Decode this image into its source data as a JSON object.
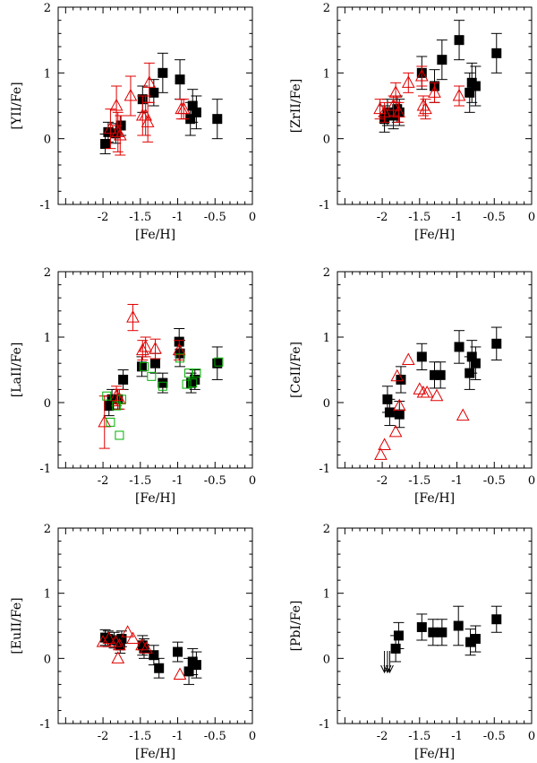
{
  "chart_data": [
    {
      "type": "scatter",
      "panel": "top-left",
      "xlabel": "[Fe/H]",
      "ylabel": "[YII/Fe]",
      "xlim": [
        -2.6,
        0
      ],
      "ylim": [
        -1,
        2
      ],
      "xticks": [
        "-2",
        "-1.5",
        "-1",
        "-0.5",
        "0"
      ],
      "yticks": [
        "-1",
        "0",
        "1",
        "2"
      ],
      "series": [
        {
          "name": "black-squares",
          "marker": "square",
          "color": "#000000",
          "points": [
            {
              "x": -1.97,
              "y": -0.08,
              "err": 0.15
            },
            {
              "x": -1.93,
              "y": 0.1,
              "err": 0.15
            },
            {
              "x": -1.83,
              "y": 0.08,
              "err": 0.15
            },
            {
              "x": -1.76,
              "y": 0.2,
              "err": 0.15
            },
            {
              "x": -1.47,
              "y": 0.6,
              "err": 0.2
            },
            {
              "x": -1.32,
              "y": 0.7,
              "err": 0.2
            },
            {
              "x": -1.2,
              "y": 1.0,
              "err": 0.3
            },
            {
              "x": -0.97,
              "y": 0.9,
              "err": 0.3
            },
            {
              "x": -0.83,
              "y": 0.3,
              "err": 0.25
            },
            {
              "x": -0.8,
              "y": 0.5,
              "err": 0.25
            },
            {
              "x": -0.75,
              "y": 0.4,
              "err": 0.25
            },
            {
              "x": -0.47,
              "y": 0.3,
              "err": 0.3
            }
          ]
        },
        {
          "name": "red-triangles",
          "marker": "triangle",
          "color": "#e00000",
          "points": [
            {
              "x": -1.9,
              "y": 0.15,
              "err": 0.3
            },
            {
              "x": -1.82,
              "y": 0.5,
              "err": 0.3
            },
            {
              "x": -1.8,
              "y": 0.1,
              "err": 0.3
            },
            {
              "x": -1.77,
              "y": 0.05,
              "err": 0.3
            },
            {
              "x": -1.63,
              "y": 0.65,
              "err": 0.3
            },
            {
              "x": -1.47,
              "y": 0.35,
              "err": 0.3
            },
            {
              "x": -1.43,
              "y": 0.35,
              "err": 0.3
            },
            {
              "x": -1.4,
              "y": 0.25,
              "err": 0.3
            },
            {
              "x": -1.38,
              "y": 0.85,
              "err": 0.3
            },
            {
              "x": -0.95,
              "y": 0.45,
              "err": 0.15
            },
            {
              "x": -0.92,
              "y": 0.45,
              "err": 0.15
            }
          ]
        }
      ]
    },
    {
      "type": "scatter",
      "panel": "top-right",
      "xlabel": "[Fe/H]",
      "ylabel": "[ZrII/Fe]",
      "xlim": [
        -2.6,
        0
      ],
      "ylim": [
        -1,
        2
      ],
      "xticks": [
        "-2",
        "-1.5",
        "-1",
        "-0.5",
        "0"
      ],
      "yticks": [
        "-1",
        "0",
        "1",
        "2"
      ],
      "series": [
        {
          "name": "black-squares",
          "marker": "square",
          "color": "#000000",
          "points": [
            {
              "x": -1.97,
              "y": 0.3,
              "err": 0.2
            },
            {
              "x": -1.93,
              "y": 0.4,
              "err": 0.2
            },
            {
              "x": -1.85,
              "y": 0.35,
              "err": 0.2
            },
            {
              "x": -1.8,
              "y": 0.45,
              "err": 0.2
            },
            {
              "x": -1.77,
              "y": 0.4,
              "err": 0.2
            },
            {
              "x": -1.47,
              "y": 1.0,
              "err": 0.25
            },
            {
              "x": -1.3,
              "y": 0.8,
              "err": 0.25
            },
            {
              "x": -1.2,
              "y": 1.2,
              "err": 0.3
            },
            {
              "x": -0.97,
              "y": 1.5,
              "err": 0.3
            },
            {
              "x": -0.83,
              "y": 0.7,
              "err": 0.3
            },
            {
              "x": -0.8,
              "y": 0.85,
              "err": 0.3
            },
            {
              "x": -0.75,
              "y": 0.8,
              "err": 0.3
            },
            {
              "x": -0.47,
              "y": 1.3,
              "err": 0.3
            }
          ]
        },
        {
          "name": "red-triangles",
          "marker": "triangle",
          "color": "#e00000",
          "points": [
            {
              "x": -2.03,
              "y": 0.45,
              "err": 0.15
            },
            {
              "x": -1.97,
              "y": 0.4,
              "err": 0.15
            },
            {
              "x": -1.85,
              "y": 0.5,
              "err": 0.15
            },
            {
              "x": -1.82,
              "y": 0.7,
              "err": 0.15
            },
            {
              "x": -1.78,
              "y": 0.4,
              "err": 0.15
            },
            {
              "x": -1.65,
              "y": 0.85,
              "err": 0.15
            },
            {
              "x": -1.47,
              "y": 0.95,
              "err": 0.15
            },
            {
              "x": -1.45,
              "y": 0.5,
              "err": 0.15
            },
            {
              "x": -1.42,
              "y": 0.45,
              "err": 0.15
            },
            {
              "x": -1.3,
              "y": 0.7,
              "err": 0.15
            },
            {
              "x": -0.97,
              "y": 0.65,
              "err": 0.15
            }
          ]
        }
      ]
    },
    {
      "type": "scatter",
      "panel": "middle-left",
      "xlabel": "[Fe/H]",
      "ylabel": "[LaII/Fe]",
      "xlim": [
        -2.6,
        0
      ],
      "ylim": [
        -1,
        2
      ],
      "xticks": [
        "-2",
        "-1.5",
        "-1",
        "-0.5",
        "0"
      ],
      "yticks": [
        "-1",
        "0",
        "1",
        "2"
      ],
      "series": [
        {
          "name": "black-squares",
          "marker": "square",
          "color": "#000000",
          "points": [
            {
              "x": -1.92,
              "y": -0.05,
              "err": 0.15
            },
            {
              "x": -1.88,
              "y": 0.05,
              "err": 0.15
            },
            {
              "x": -1.8,
              "y": 0.05,
              "err": 0.15
            },
            {
              "x": -1.73,
              "y": 0.35,
              "err": 0.15
            },
            {
              "x": -1.48,
              "y": 0.55,
              "err": 0.15
            },
            {
              "x": -1.3,
              "y": 0.6,
              "err": 0.15
            },
            {
              "x": -1.2,
              "y": 0.3,
              "err": 0.15
            },
            {
              "x": -0.98,
              "y": 0.93,
              "err": 0.2
            },
            {
              "x": -0.97,
              "y": 0.75,
              "err": 0.2
            },
            {
              "x": -0.82,
              "y": 0.3,
              "err": 0.15
            },
            {
              "x": -0.77,
              "y": 0.35,
              "err": 0.15
            },
            {
              "x": -0.47,
              "y": 0.6,
              "err": 0.25
            }
          ]
        },
        {
          "name": "red-triangles",
          "marker": "triangle",
          "color": "#e00000",
          "points": [
            {
              "x": -1.98,
              "y": -0.3,
              "err": 0.4
            },
            {
              "x": -1.82,
              "y": 0.1,
              "err": 0.15
            },
            {
              "x": -1.78,
              "y": 0.05,
              "err": 0.15
            },
            {
              "x": -1.6,
              "y": 1.3,
              "err": 0.2
            },
            {
              "x": -1.47,
              "y": 0.8,
              "err": 0.15
            },
            {
              "x": -1.43,
              "y": 0.85,
              "err": 0.15
            },
            {
              "x": -1.3,
              "y": 0.82,
              "err": 0.15
            },
            {
              "x": -0.98,
              "y": 0.8,
              "err": 0.15
            }
          ]
        },
        {
          "name": "green-squares",
          "marker": "open-square",
          "color": "#00b000",
          "points": [
            {
              "x": -1.95,
              "y": 0.1
            },
            {
              "x": -1.9,
              "y": -0.3
            },
            {
              "x": -1.82,
              "y": -0.05
            },
            {
              "x": -1.78,
              "y": -0.5
            },
            {
              "x": -1.75,
              "y": 0.05
            },
            {
              "x": -1.45,
              "y": 0.55
            },
            {
              "x": -1.35,
              "y": 0.4
            },
            {
              "x": -1.2,
              "y": 0.25
            },
            {
              "x": -0.97,
              "y": 0.68
            },
            {
              "x": -0.88,
              "y": 0.28
            },
            {
              "x": -0.85,
              "y": 0.45
            },
            {
              "x": -0.8,
              "y": 0.3
            },
            {
              "x": -0.75,
              "y": 0.45
            },
            {
              "x": -0.45,
              "y": 0.62
            }
          ]
        }
      ]
    },
    {
      "type": "scatter",
      "panel": "middle-right",
      "xlabel": "[Fe/H]",
      "ylabel": "[CeII/Fe]",
      "xlim": [
        -2.6,
        0
      ],
      "ylim": [
        -1,
        2
      ],
      "xticks": [
        "-2",
        "-1.5",
        "-1",
        "-0.5",
        "0"
      ],
      "yticks": [
        "-1",
        "0",
        "1",
        "2"
      ],
      "series": [
        {
          "name": "black-squares",
          "marker": "square",
          "color": "#000000",
          "points": [
            {
              "x": -1.93,
              "y": 0.05,
              "err": 0.2
            },
            {
              "x": -1.9,
              "y": -0.15,
              "err": 0.2
            },
            {
              "x": -1.77,
              "y": -0.18,
              "err": 0.2
            },
            {
              "x": -1.75,
              "y": 0.35,
              "err": 0.2
            },
            {
              "x": -1.47,
              "y": 0.7,
              "err": 0.2
            },
            {
              "x": -1.3,
              "y": 0.42,
              "err": 0.2
            },
            {
              "x": -1.22,
              "y": 0.42,
              "err": 0.2
            },
            {
              "x": -0.97,
              "y": 0.85,
              "err": 0.25
            },
            {
              "x": -0.83,
              "y": 0.45,
              "err": 0.25
            },
            {
              "x": -0.8,
              "y": 0.7,
              "err": 0.25
            },
            {
              "x": -0.75,
              "y": 0.6,
              "err": 0.25
            },
            {
              "x": -0.47,
              "y": 0.9,
              "err": 0.25
            }
          ]
        },
        {
          "name": "red-triangles",
          "marker": "triangle",
          "color": "#e00000",
          "points": [
            {
              "x": -2.02,
              "y": -0.8
            },
            {
              "x": -1.97,
              "y": -0.65
            },
            {
              "x": -1.82,
              "y": -0.45
            },
            {
              "x": -1.8,
              "y": 0.4
            },
            {
              "x": -1.77,
              "y": -0.05
            },
            {
              "x": -1.65,
              "y": 0.65
            },
            {
              "x": -1.5,
              "y": 0.2
            },
            {
              "x": -1.45,
              "y": 0.15
            },
            {
              "x": -1.4,
              "y": 0.15
            },
            {
              "x": -1.27,
              "y": 0.1
            },
            {
              "x": -0.92,
              "y": -0.2
            }
          ]
        }
      ]
    },
    {
      "type": "scatter",
      "panel": "bottom-left",
      "xlabel": "[Fe/H]",
      "ylabel": "[EuII/Fe]",
      "xlim": [
        -2.6,
        0
      ],
      "ylim": [
        -1,
        2
      ],
      "xticks": [
        "-2",
        "-1.5",
        "-1",
        "-0.5",
        "0"
      ],
      "yticks": [
        "-1",
        "0",
        "1",
        "2"
      ],
      "series": [
        {
          "name": "black-squares",
          "marker": "square",
          "color": "#000000",
          "points": [
            {
              "x": -1.97,
              "y": 0.32,
              "err": 0.12
            },
            {
              "x": -1.93,
              "y": 0.3,
              "err": 0.12
            },
            {
              "x": -1.85,
              "y": 0.28,
              "err": 0.12
            },
            {
              "x": -1.77,
              "y": 0.2,
              "err": 0.12
            },
            {
              "x": -1.75,
              "y": 0.3,
              "err": 0.12
            },
            {
              "x": -1.47,
              "y": 0.2,
              "err": 0.15
            },
            {
              "x": -1.45,
              "y": 0.15,
              "err": 0.15
            },
            {
              "x": -1.32,
              "y": 0.05,
              "err": 0.15
            },
            {
              "x": -1.25,
              "y": -0.15,
              "err": 0.15
            },
            {
              "x": -1.0,
              "y": 0.1,
              "err": 0.15
            },
            {
              "x": -0.85,
              "y": -0.2,
              "err": 0.2
            },
            {
              "x": -0.8,
              "y": -0.05,
              "err": 0.2
            },
            {
              "x": -0.75,
              "y": -0.1,
              "err": 0.2
            }
          ]
        },
        {
          "name": "red-triangles",
          "marker": "triangle",
          "color": "#e00000",
          "points": [
            {
              "x": -2.0,
              "y": 0.25
            },
            {
              "x": -1.92,
              "y": 0.3
            },
            {
              "x": -1.83,
              "y": 0.25
            },
            {
              "x": -1.8,
              "y": 0.0
            },
            {
              "x": -1.78,
              "y": 0.2
            },
            {
              "x": -1.67,
              "y": 0.4
            },
            {
              "x": -1.6,
              "y": 0.3
            },
            {
              "x": -1.48,
              "y": 0.2
            },
            {
              "x": -1.42,
              "y": 0.15
            },
            {
              "x": -0.97,
              "y": -0.25
            }
          ]
        }
      ]
    },
    {
      "type": "scatter",
      "panel": "bottom-right",
      "xlabel": "[Fe/H]",
      "ylabel": "[PbI/Fe]",
      "xlim": [
        -2.6,
        0
      ],
      "ylim": [
        -1,
        2
      ],
      "xticks": [
        "-2",
        "-1.5",
        "-1",
        "-0.5",
        "0"
      ],
      "yticks": [
        "-1",
        "0",
        "1",
        "2"
      ],
      "series": [
        {
          "name": "black-squares",
          "marker": "square",
          "color": "#000000",
          "points": [
            {
              "x": -1.82,
              "y": 0.15,
              "err": 0.2
            },
            {
              "x": -1.78,
              "y": 0.35,
              "err": 0.2
            },
            {
              "x": -1.47,
              "y": 0.48,
              "err": 0.2
            },
            {
              "x": -1.32,
              "y": 0.4,
              "err": 0.2
            },
            {
              "x": -1.2,
              "y": 0.4,
              "err": 0.2
            },
            {
              "x": -0.98,
              "y": 0.5,
              "err": 0.3
            },
            {
              "x": -0.82,
              "y": 0.25,
              "err": 0.2
            },
            {
              "x": -0.75,
              "y": 0.3,
              "err": 0.2
            },
            {
              "x": -0.47,
              "y": 0.6,
              "err": 0.2
            }
          ]
        },
        {
          "name": "upper-limits",
          "marker": "down-arrow",
          "color": "#000000",
          "points": [
            {
              "x": -1.97,
              "y": -0.05
            },
            {
              "x": -1.93,
              "y": -0.05
            },
            {
              "x": -1.9,
              "y": -0.05
            }
          ]
        }
      ]
    }
  ]
}
